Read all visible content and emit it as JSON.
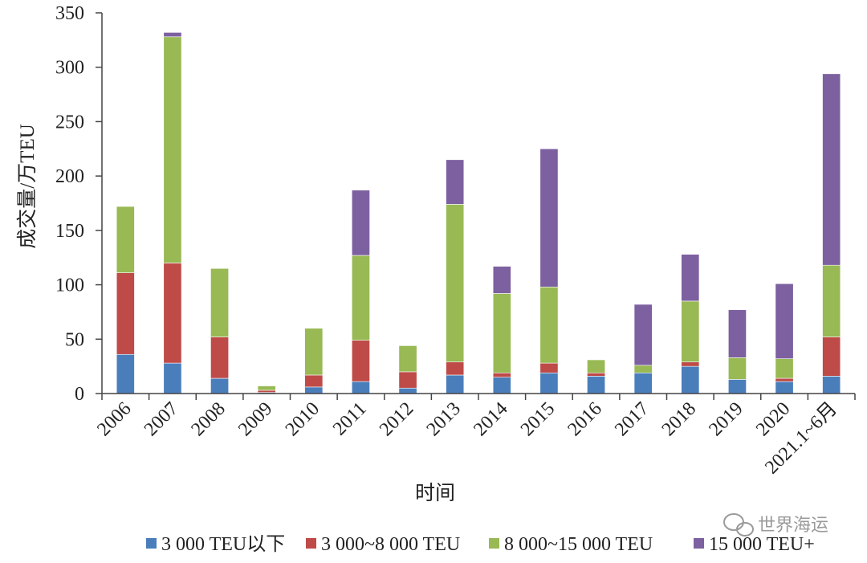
{
  "chart_data": {
    "type": "bar",
    "stacked": true,
    "title": "",
    "xlabel": "时间",
    "ylabel": "成交量/万TEU",
    "ylim": [
      0,
      350
    ],
    "yticks": [
      0,
      50,
      100,
      150,
      200,
      250,
      300,
      350
    ],
    "grid": false,
    "legend_position": "bottom",
    "categories": [
      "2006",
      "2007",
      "2008",
      "2009",
      "2010",
      "2011",
      "2012",
      "2013",
      "2014",
      "2015",
      "2016",
      "2017",
      "2018",
      "2019",
      "2020",
      "2021.1~6月"
    ],
    "series": [
      {
        "name": "3 000 TEU以下",
        "color": "#4a7ebb",
        "values": [
          36,
          28,
          14,
          1,
          6,
          11,
          5,
          17,
          15,
          19,
          16,
          19,
          25,
          13,
          11,
          16
        ]
      },
      {
        "name": "3 000~8 000 TEU",
        "color": "#be4b48",
        "values": [
          75,
          92,
          38,
          2,
          11,
          38,
          15,
          12,
          4,
          9,
          3,
          0,
          4,
          0,
          3,
          36
        ]
      },
      {
        "name": "8 000~15 000 TEU",
        "color": "#98b954",
        "values": [
          61,
          208,
          63,
          4,
          43,
          78,
          24,
          145,
          73,
          70,
          12,
          7,
          56,
          20,
          18,
          66
        ]
      },
      {
        "name": "15 000 TEU+",
        "color": "#7d60a0",
        "values": [
          0,
          4,
          0,
          0,
          0,
          60,
          0,
          41,
          25,
          127,
          0,
          56,
          43,
          44,
          69,
          176
        ]
      }
    ]
  },
  "watermark": {
    "text": "世界海运",
    "icon": "wechat-icon"
  }
}
